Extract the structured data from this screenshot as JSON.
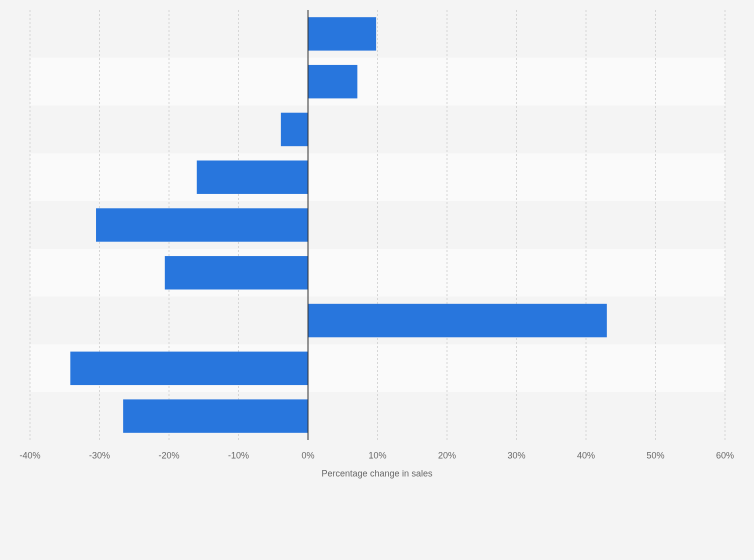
{
  "chart_data": {
    "type": "hbar",
    "xlabel": "Percentage change in sales",
    "categories": [
      null,
      null,
      null,
      null,
      null,
      null,
      null,
      null,
      null
    ],
    "values": [
      9.8,
      7.1,
      -3.9,
      -16.0,
      -30.5,
      -20.6,
      43.0,
      -34.2,
      -26.6
    ],
    "color": "#2876dd",
    "xlim": [
      -40,
      60
    ],
    "xticks": [
      {
        "value": -40,
        "label": "-40%"
      },
      {
        "value": -30,
        "label": "-30%"
      },
      {
        "value": -20,
        "label": "-20%"
      },
      {
        "value": -10,
        "label": "-10%"
      },
      {
        "value": 0,
        "label": "0%"
      },
      {
        "value": 10,
        "label": "10%"
      },
      {
        "value": 20,
        "label": "20%"
      },
      {
        "value": 30,
        "label": "30%"
      },
      {
        "value": 40,
        "label": "40%"
      },
      {
        "value": 50,
        "label": "50%"
      },
      {
        "value": 60,
        "label": "60%"
      }
    ],
    "grid": true
  }
}
